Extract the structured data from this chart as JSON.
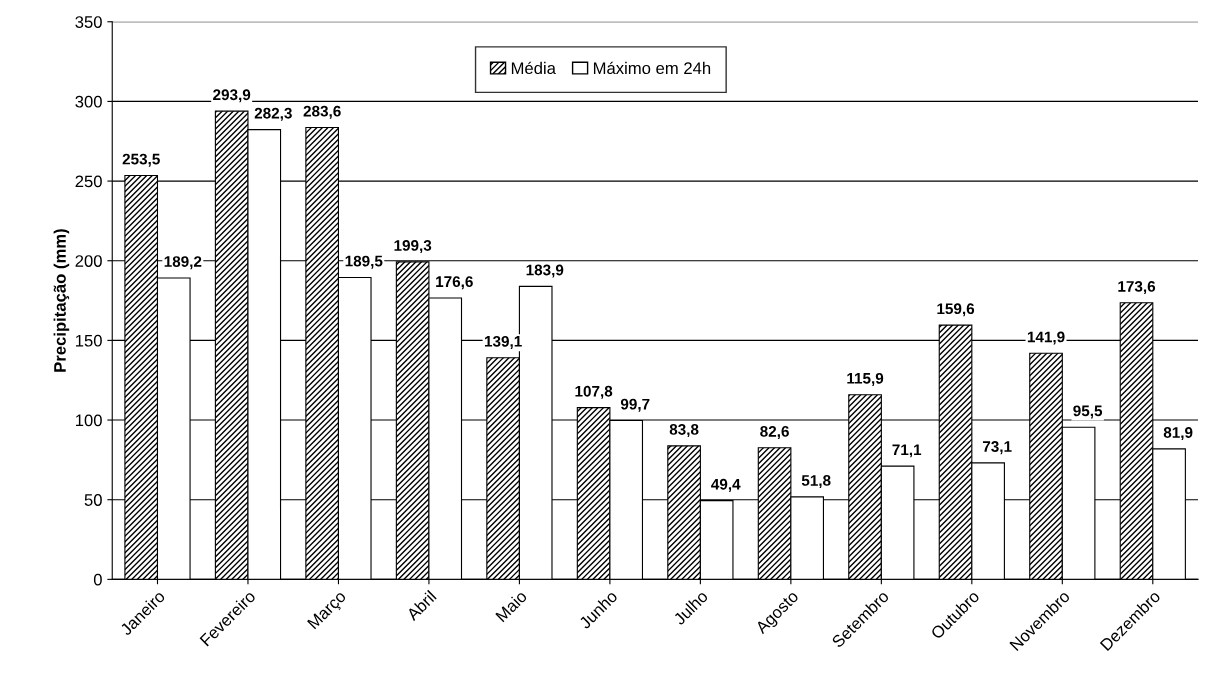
{
  "chart_data": {
    "type": "bar",
    "ylabel": "Precipitação (mm)",
    "categories": [
      "Janeiro",
      "Fevereiro",
      "Março",
      "Abril",
      "Maio",
      "Junho",
      "Julho",
      "Agosto",
      "Setembro",
      "Outubro",
      "Novembro",
      "Dezembro"
    ],
    "series": [
      {
        "name": "Média",
        "color": "#000000",
        "values": [
          253.5,
          293.9,
          283.6,
          199.3,
          139.1,
          107.8,
          83.8,
          82.6,
          115.9,
          159.6,
          141.9,
          173.6
        ],
        "value_labels": [
          "253,5",
          "293,9",
          "283,6",
          "199,3",
          "139,1",
          "107,8",
          "83,8",
          "82,6",
          "115,9",
          "159,6",
          "141,9",
          "173,6"
        ]
      },
      {
        "name": "Máximo em 24h",
        "color": "#ffffff",
        "values": [
          189.2,
          282.3,
          189.5,
          176.6,
          183.9,
          99.7,
          49.4,
          51.8,
          71.1,
          73.1,
          95.5,
          81.9
        ],
        "value_labels": [
          "189,2",
          "282,3",
          "189,5",
          "176,6",
          "183,9",
          "99,7",
          "49,4",
          "51,8",
          "71,1",
          "73,1",
          "95,5",
          "81,9"
        ]
      }
    ],
    "ylim": [
      0,
      350
    ],
    "yticks": [
      0,
      50,
      100,
      150,
      200,
      250,
      300,
      350
    ],
    "grid": "y",
    "legend": "top"
  }
}
